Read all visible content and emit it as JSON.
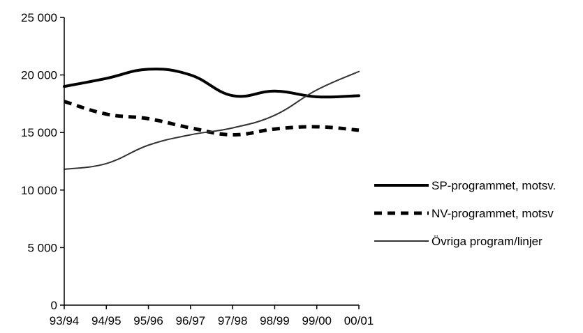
{
  "chart_data": {
    "type": "line",
    "categories": [
      "93/94",
      "94/95",
      "95/96",
      "96/97",
      "97/98",
      "98/99",
      "99/00",
      "00/01"
    ],
    "series": [
      {
        "name": "SP-programmet, motsv.",
        "values": [
          19000,
          19700,
          20500,
          20000,
          18200,
          18600,
          18100,
          18200
        ],
        "color": "#000000",
        "style": "solid-thick"
      },
      {
        "name": "NV-programmet, motsv",
        "values": [
          17700,
          16600,
          16200,
          15400,
          14800,
          15300,
          15500,
          15200
        ],
        "color": "#000000",
        "style": "dashed-thick"
      },
      {
        "name": "Övriga program/linjer",
        "values": [
          11800,
          12300,
          13900,
          14800,
          15400,
          16500,
          18700,
          20300
        ],
        "color": "#333333",
        "style": "solid-thin"
      }
    ],
    "y_ticks": [
      "0",
      "5 000",
      "10 000",
      "15 000",
      "20 000",
      "25 000"
    ],
    "ylim": [
      0,
      25000
    ],
    "y_tick_step": 5000,
    "grid": false,
    "legend_position": "right"
  }
}
